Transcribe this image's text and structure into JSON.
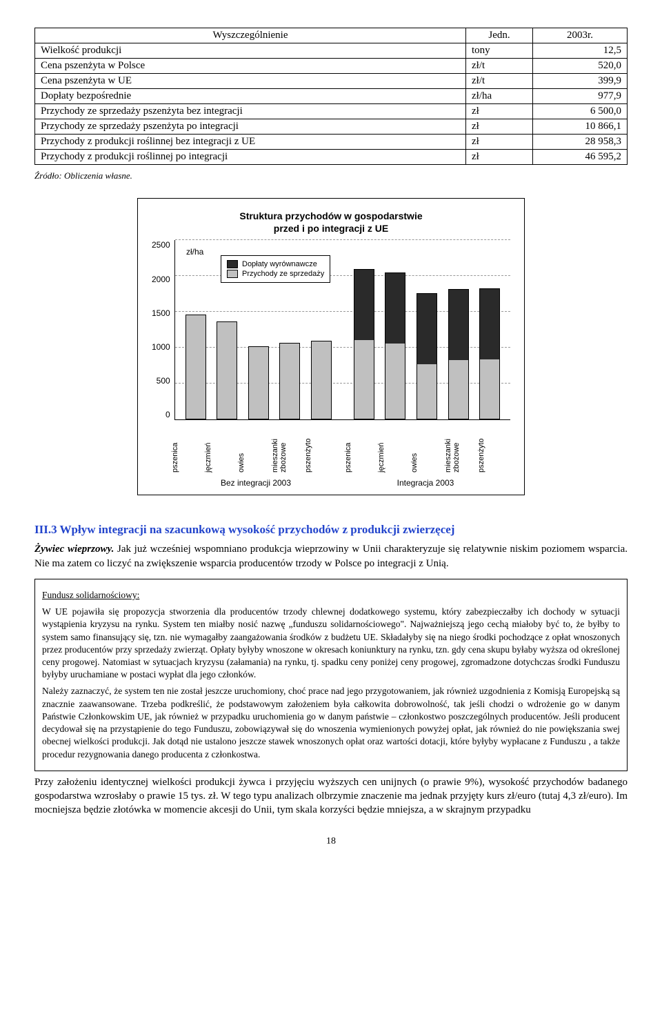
{
  "table": {
    "headers": [
      "Wyszczególnienie",
      "Jedn.",
      "2003r."
    ],
    "rows": [
      {
        "label": "Wielkość produkcji",
        "unit": "tony",
        "value": "12,5"
      },
      {
        "label": "Cena pszenżyta w Polsce",
        "unit": "zł/t",
        "value": "520,0"
      },
      {
        "label": "Cena pszenżyta w UE",
        "unit": "zł/t",
        "value": "399,9"
      },
      {
        "label": "Dopłaty bezpośrednie",
        "unit": "zł/ha",
        "value": "977,9"
      },
      {
        "label": "Przychody ze sprzedaży pszenżyta bez integracji",
        "unit": "zł",
        "value": "6 500,0"
      },
      {
        "label": "Przychody ze sprzedaży pszenżyta po integracji",
        "unit": "zł",
        "value": "10 866,1"
      },
      {
        "label": "Przychody z produkcji roślinnej bez integracji z UE",
        "unit": "zł",
        "value": "28 958,3"
      },
      {
        "label": "Przychody z produkcji roślinnej po integracji",
        "unit": "zł",
        "value": "46 595,2"
      }
    ],
    "source": "Źródło: Obliczenia własne."
  },
  "chart": {
    "title_line1": "Struktura przychodów w gospodarstwie",
    "title_line2": "przed i po integracji z UE",
    "ylabel": "zł/ha",
    "ymax": 2500,
    "ytick_step": 500,
    "yticks": [
      "0",
      "500",
      "1000",
      "1500",
      "2000",
      "2500"
    ],
    "legend": [
      {
        "label": "Dopłaty wyrównawcze",
        "color": "#2a2a2a"
      },
      {
        "label": "Przychody ze sprzedaży",
        "color": "#c0c0c0"
      }
    ],
    "colors": {
      "rev": "#c0c0c0",
      "sub": "#2a2a2a"
    },
    "groups": [
      {
        "name": "Bez integracji 2003",
        "bars": [
          {
            "cat": "pszenica",
            "rev": 1450,
            "sub": 0
          },
          {
            "cat": "jęczmień",
            "rev": 1350,
            "sub": 0
          },
          {
            "cat": "owies",
            "rev": 1000,
            "sub": 0
          },
          {
            "cat": "mieszanki zbożowe",
            "rev": 1050,
            "sub": 0
          },
          {
            "cat": "pszenżyto",
            "rev": 1080,
            "sub": 0
          }
        ]
      },
      {
        "name": "Integracja 2003",
        "bars": [
          {
            "cat": "pszenica",
            "rev": 1100,
            "sub": 980
          },
          {
            "cat": "jęczmień",
            "rev": 1050,
            "sub": 980
          },
          {
            "cat": "owies",
            "rev": 760,
            "sub": 980
          },
          {
            "cat": "mieszanki zbożowe",
            "rev": 820,
            "sub": 980
          },
          {
            "cat": "pszenżyto",
            "rev": 830,
            "sub": 980
          }
        ]
      }
    ]
  },
  "section_heading": "III.3 Wpływ integracji na szacunkową wysokość przychodów z produkcji zwierzęcej",
  "para1_lead": "Żywiec wieprzowy.",
  "para1": " Jak już wcześniej wspomniano produkcja wieprzowiny w Unii charakteryzuje się relatywnie niskim poziomem wsparcia. Nie ma zatem co liczyć na zwiększenie wsparcia producentów trzody w Polsce po integracji z Unią.",
  "box": {
    "heading": "Fundusz solidarnościowy:",
    "p1": "W UE pojawiła się propozycja stworzenia dla producentów trzody chlewnej dodatkowego systemu, który zabezpieczałby ich dochody w sytuacji wystąpienia kryzysu na rynku. System ten miałby nosić nazwę „funduszu solidarnościowego\". Najważniejszą jego cechą miałoby być to, że byłby to system samo finansujący się, tzn. nie wymagałby zaangażowania środków z budżetu UE. Składałyby się na niego środki pochodzące z opłat wnoszonych przez producentów przy sprzedaży zwierząt. Opłaty byłyby wnoszone w okresach koniunktury na rynku, tzn. gdy cena skupu byłaby wyższa od określonej ceny progowej. Natomiast w sytuacjach kryzysu (załamania) na rynku, tj. spadku ceny poniżej ceny progowej, zgromadzone dotychczas środki Funduszu byłyby uruchamiane w postaci wypłat dla jego członków.",
    "p2": "Należy zaznaczyć, że system ten nie został jeszcze uruchomiony, choć prace nad jego przygotowaniem, jak również uzgodnienia z Komisją Europejską są znacznie zaawansowane. Trzeba podkreślić, że podstawowym założeniem była całkowita dobrowolność, tak jeśli chodzi o wdrożenie go w danym Państwie Członkowskim UE, jak również w przypadku uruchomienia go w danym państwie – członkostwo poszczególnych producentów. Jeśli producent decydował się na przystąpienie do tego Funduszu, zobowiązywał się do wnoszenia wymienionych powyżej opłat, jak również do nie powiększania swej obecnej wielkości produkcji. Jak dotąd nie ustalono jeszcze stawek wnoszonych opłat oraz wartości dotacji, które byłyby wypłacane z Funduszu , a także procedur rezygnowania danego producenta z członkostwa."
  },
  "para2": "Przy założeniu identycznej wielkości produkcji żywca i przyjęciu wyższych cen unijnych (o prawie 9%), wysokość przychodów badanego gospodarstwa wzrosłaby o prawie 15 tys. zł. W tego typu analizach olbrzymie znaczenie ma jednak przyjęty kurs zł/euro (tutaj 4,3 zł/euro). Im mocniejsza będzie złotówka w momencie akcesji do Unii, tym skala korzyści będzie mniejsza, a w skrajnym przypadku",
  "page_number": "18"
}
